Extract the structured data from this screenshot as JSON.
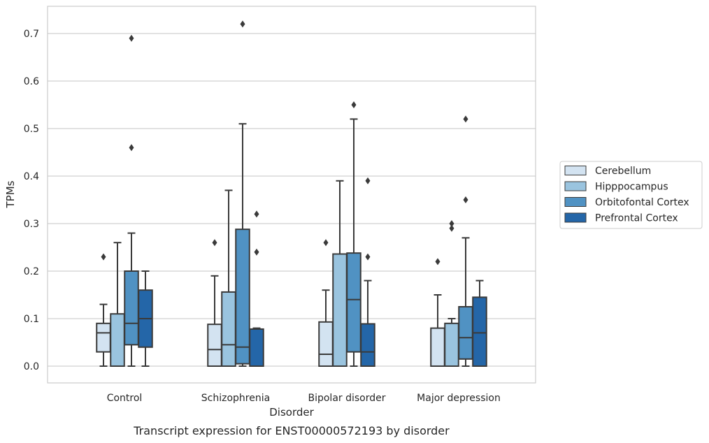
{
  "chart_data": {
    "type": "box",
    "caption": "Transcript expression for ENST00000572193 by disorder",
    "xlabel": "Disorder",
    "ylabel": "TPMs",
    "ylim": [
      -0.035,
      0.76
    ],
    "yticks": [
      "0.0",
      "0.1",
      "0.2",
      "0.3",
      "0.4",
      "0.5",
      "0.6",
      "0.7"
    ],
    "grid": true,
    "legend_position": "right",
    "categories": [
      "Control",
      "Schizophrenia",
      "Bipolar disorder",
      "Major depression"
    ],
    "series": [
      {
        "name": "Cerebellum",
        "color": "#d3e3f1",
        "boxes": [
          {
            "whislo": 0.0,
            "q1": 0.03,
            "med": 0.07,
            "q3": 0.09,
            "whishi": 0.13,
            "fliers": [
              0.23
            ]
          },
          {
            "whislo": 0.0,
            "q1": 0.0,
            "med": 0.035,
            "q3": 0.088,
            "whishi": 0.19,
            "fliers": [
              0.26
            ]
          },
          {
            "whislo": 0.0,
            "q1": 0.0,
            "med": 0.025,
            "q3": 0.093,
            "whishi": 0.16,
            "fliers": [
              0.26
            ]
          },
          {
            "whislo": 0.0,
            "q1": 0.0,
            "med": 0.0,
            "q3": 0.08,
            "whishi": 0.15,
            "fliers": [
              0.22
            ]
          }
        ]
      },
      {
        "name": "Hipppocampus",
        "color": "#9ac4df",
        "boxes": [
          {
            "whislo": 0.0,
            "q1": 0.0,
            "med": 0.0,
            "q3": 0.11,
            "whishi": 0.26,
            "fliers": []
          },
          {
            "whislo": 0.0,
            "q1": 0.0,
            "med": 0.045,
            "q3": 0.156,
            "whishi": 0.37,
            "fliers": []
          },
          {
            "whislo": 0.0,
            "q1": 0.0,
            "med": 0.0,
            "q3": 0.236,
            "whishi": 0.39,
            "fliers": []
          },
          {
            "whislo": 0.0,
            "q1": 0.0,
            "med": 0.0,
            "q3": 0.09,
            "whishi": 0.1,
            "fliers": [
              0.29,
              0.3
            ]
          }
        ]
      },
      {
        "name": "Orbitofontal Cortex",
        "color": "#5092c3",
        "boxes": [
          {
            "whislo": 0.0,
            "q1": 0.045,
            "med": 0.09,
            "q3": 0.2,
            "whishi": 0.28,
            "fliers": [
              0.46,
              0.69
            ]
          },
          {
            "whislo": 0.0,
            "q1": 0.005,
            "med": 0.04,
            "q3": 0.288,
            "whishi": 0.51,
            "fliers": [
              0.72
            ]
          },
          {
            "whislo": 0.0,
            "q1": 0.03,
            "med": 0.14,
            "q3": 0.238,
            "whishi": 0.52,
            "fliers": [
              0.55
            ]
          },
          {
            "whislo": 0.0,
            "q1": 0.015,
            "med": 0.06,
            "q3": 0.125,
            "whishi": 0.27,
            "fliers": [
              0.35,
              0.52
            ]
          }
        ]
      },
      {
        "name": "Prefrontal Cortex",
        "color": "#2466a8",
        "boxes": [
          {
            "whislo": 0.0,
            "q1": 0.04,
            "med": 0.1,
            "q3": 0.16,
            "whishi": 0.2,
            "fliers": []
          },
          {
            "whislo": 0.0,
            "q1": 0.0,
            "med": 0.0,
            "q3": 0.078,
            "whishi": 0.08,
            "fliers": [
              0.24,
              0.32
            ]
          },
          {
            "whislo": 0.0,
            "q1": 0.0,
            "med": 0.03,
            "q3": 0.089,
            "whishi": 0.18,
            "fliers": [
              0.23,
              0.39
            ]
          },
          {
            "whislo": 0.0,
            "q1": 0.0,
            "med": 0.07,
            "q3": 0.145,
            "whishi": 0.18,
            "fliers": []
          }
        ]
      }
    ]
  }
}
